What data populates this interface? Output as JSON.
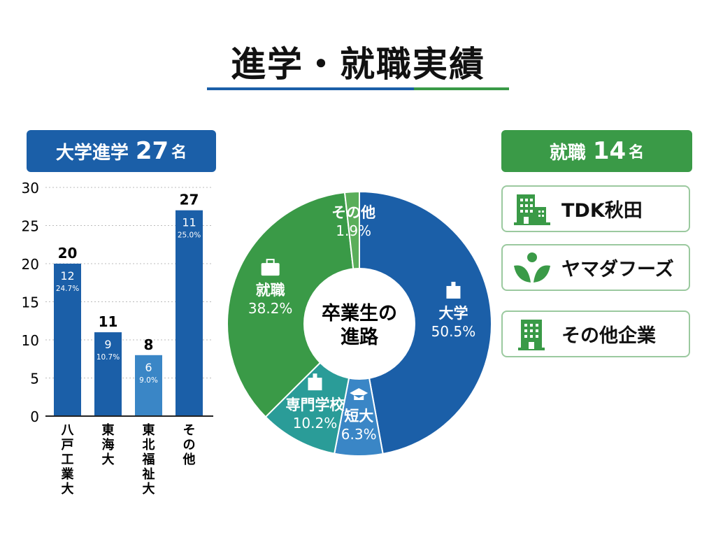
{
  "title": "進学・就職実績",
  "colors": {
    "blue": "#1b5fa8",
    "light_blue": "#3a86c6",
    "teal": "#2a9c98",
    "green": "#3a9a47",
    "light_green": "#5aae5a"
  },
  "university_header": {
    "label": "大学進学",
    "count": "27",
    "unit": "名"
  },
  "employment_header": {
    "label": "就職",
    "count": "14",
    "unit": "名"
  },
  "employers": [
    {
      "name": "TDK秋田",
      "icon": "office-buildings-icon"
    },
    {
      "name": "ヤマダフーズ",
      "icon": "sprout-logo-icon"
    },
    {
      "name": "その他企業",
      "icon": "office-building-icon"
    }
  ],
  "chart_data": [
    {
      "type": "bar",
      "categories": [
        "八戸工業大",
        "東海大",
        "東北福祉大",
        "その他"
      ],
      "values": [
        20,
        11,
        8,
        27
      ],
      "inner_counts": [
        "12",
        "9",
        "6",
        "11"
      ],
      "inner_percents": [
        "24.7%",
        "10.7%",
        "9.0%",
        "25.0%"
      ],
      "ylim": [
        0,
        30
      ],
      "yticks": [
        0,
        5,
        10,
        15,
        20,
        25,
        30
      ],
      "grid": true
    },
    {
      "type": "pie",
      "center_label": [
        "卒業生の",
        "進路"
      ],
      "slices": [
        {
          "label": "大学",
          "value": 50.5,
          "percent": "50.5%",
          "icon": "school-building-icon",
          "color": "#1b5fa8"
        },
        {
          "label": "短大",
          "value": 6.3,
          "percent": "6.3%",
          "icon": "graduation-cap-icon",
          "color": "#3a86c6"
        },
        {
          "label": "専門学校",
          "value": 10.2,
          "percent": "10.2%",
          "icon": "school-building-icon",
          "color": "#2a9c98"
        },
        {
          "label": "就職",
          "value": 38.2,
          "percent": "38.2%",
          "icon": "briefcase-icon",
          "color": "#3a9a47"
        },
        {
          "label": "その他",
          "value": 1.9,
          "percent": "1.9%",
          "icon": "",
          "color": "#5aae5a"
        }
      ]
    }
  ]
}
